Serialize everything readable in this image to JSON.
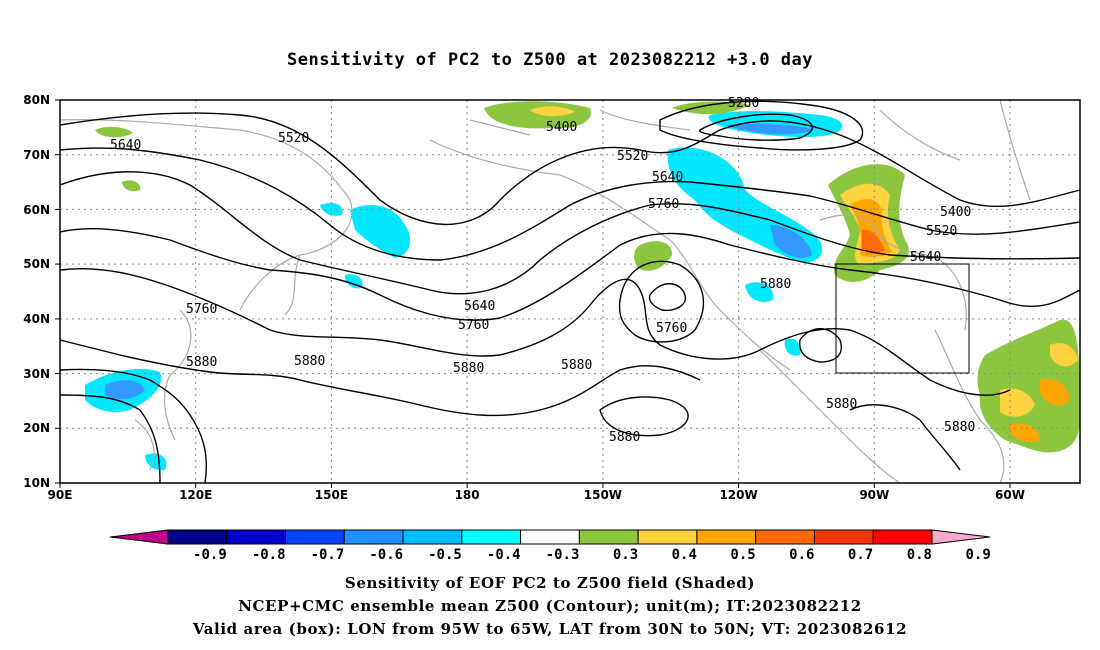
{
  "title": "Sensitivity of PC2 to Z500 at 2023082212 +3.0 day",
  "map": {
    "lat_labels": [
      "80N",
      "70N",
      "60N",
      "50N",
      "40N",
      "30N",
      "20N",
      "10N"
    ],
    "lon_labels": [
      "90E",
      "120E",
      "150E",
      "180",
      "150W",
      "120W",
      "90W",
      "60W"
    ],
    "contour_labels": [
      "5280",
      "5400",
      "5520",
      "5640",
      "5400",
      "5520",
      "5640",
      "5760",
      "5520",
      "5640",
      "5760",
      "5880",
      "5640",
      "5760",
      "5760",
      "5880",
      "5880",
      "5880",
      "5880",
      "5880",
      "5880",
      "5880"
    ],
    "valid_box": "LON 95W-65W, LAT 30N-50N"
  },
  "colorbar": {
    "labels": [
      "-0.9",
      "-0.8",
      "-0.7",
      "-0.6",
      "-0.5",
      "-0.4",
      "-0.3",
      "0.3",
      "0.4",
      "0.5",
      "0.6",
      "0.7",
      "0.8",
      "0.9"
    ],
    "colors": [
      "#c0008c",
      "#00008b",
      "#0000cd",
      "#0044ff",
      "#1e90ff",
      "#00bfff",
      "#00ffff",
      "#ffffff",
      "#8cc63f",
      "#ffd23f",
      "#ffa500",
      "#ff6a00",
      "#ff3300",
      "#ff0000",
      "#f5a9d0"
    ]
  },
  "captions": {
    "line1": "Sensitivity of EOF PC2 to Z500 field (Shaded)",
    "line2": "NCEP+CMC ensemble mean Z500 (Contour); unit(m); IT:2023082212",
    "line3": "Valid area (box): LON from 95W to 65W, LAT from 30N to 50N; VT: 2023082612"
  }
}
